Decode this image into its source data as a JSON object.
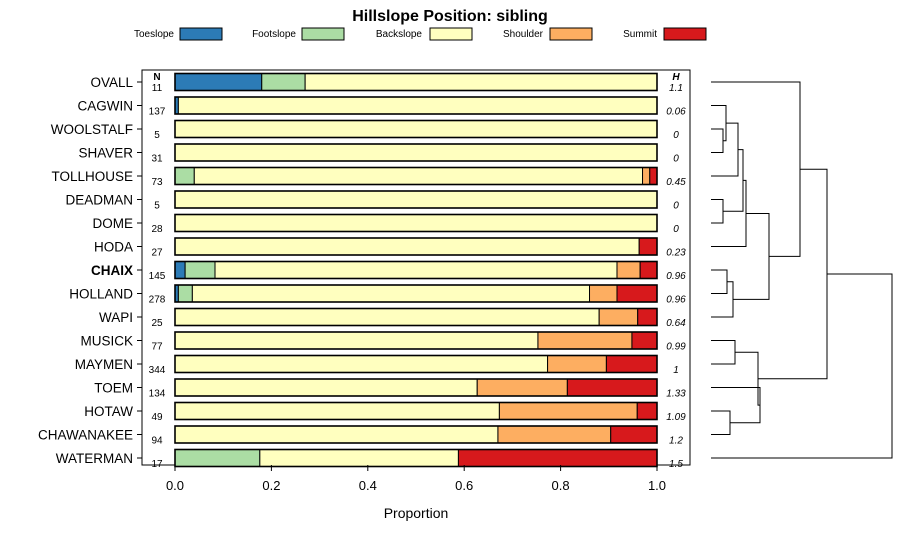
{
  "chart_data": {
    "type": "bar",
    "orientation": "horizontal",
    "stacked": true,
    "title": "Hillslope Position: sibling",
    "xlabel": "Proportion",
    "xlim": [
      0,
      1
    ],
    "x_ticks": [
      "0.0",
      "0.2",
      "0.4",
      "0.6",
      "0.8",
      "1.0"
    ],
    "x_tick_values": [
      0,
      0.2,
      0.4,
      0.6,
      0.8,
      1.0
    ],
    "legend_placement": "top",
    "n_header": "N",
    "h_header": "H",
    "series": [
      {
        "name": "Toeslope",
        "color": "#2C7BB6"
      },
      {
        "name": "Footslope",
        "color": "#ABDDA4"
      },
      {
        "name": "Backslope",
        "color": "#FFFFBF"
      },
      {
        "name": "Shoulder",
        "color": "#FDAE61"
      },
      {
        "name": "Summit",
        "color": "#D7191C"
      }
    ],
    "rows": [
      {
        "label": "OVALL",
        "n": "11",
        "h": "1.1",
        "bold": false,
        "values": [
          0.18,
          0.09,
          0.73,
          0,
          0
        ]
      },
      {
        "label": "CAGWIN",
        "n": "137",
        "h": "0.06",
        "bold": false,
        "values": [
          0.007,
          0,
          0.993,
          0,
          0
        ]
      },
      {
        "label": "WOOLSTALF",
        "n": "5",
        "h": "0",
        "bold": false,
        "values": [
          0,
          0,
          1,
          0,
          0
        ]
      },
      {
        "label": "SHAVER",
        "n": "31",
        "h": "0",
        "bold": false,
        "values": [
          0,
          0,
          1,
          0,
          0
        ]
      },
      {
        "label": "TOLLHOUSE",
        "n": "73",
        "h": "0.45",
        "bold": false,
        "values": [
          0,
          0.04,
          0.93,
          0.015,
          0.015
        ]
      },
      {
        "label": "DEADMAN",
        "n": "5",
        "h": "0",
        "bold": false,
        "values": [
          0,
          0,
          1,
          0,
          0
        ]
      },
      {
        "label": "DOME",
        "n": "28",
        "h": "0",
        "bold": false,
        "values": [
          0,
          0,
          1,
          0,
          0
        ]
      },
      {
        "label": "HODA",
        "n": "27",
        "h": "0.23",
        "bold": false,
        "values": [
          0,
          0,
          0.963,
          0,
          0.037
        ]
      },
      {
        "label": "CHAIX",
        "n": "145",
        "h": "0.96",
        "bold": true,
        "values": [
          0.021,
          0.062,
          0.834,
          0.048,
          0.035
        ]
      },
      {
        "label": "HOLLAND",
        "n": "278",
        "h": "0.96",
        "bold": false,
        "values": [
          0.007,
          0.029,
          0.824,
          0.057,
          0.083
        ]
      },
      {
        "label": "WAPI",
        "n": "25",
        "h": "0.64",
        "bold": false,
        "values": [
          0,
          0,
          0.88,
          0.08,
          0.04
        ]
      },
      {
        "label": "MUSICK",
        "n": "77",
        "h": "0.99",
        "bold": false,
        "values": [
          0,
          0,
          0.753,
          0.195,
          0.052
        ]
      },
      {
        "label": "MAYMEN",
        "n": "344",
        "h": "1",
        "bold": false,
        "values": [
          0,
          0,
          0.773,
          0.122,
          0.105
        ]
      },
      {
        "label": "TOEM",
        "n": "134",
        "h": "1.33",
        "bold": false,
        "values": [
          0,
          0,
          0.627,
          0.187,
          0.186
        ]
      },
      {
        "label": "HOTAW",
        "n": "49",
        "h": "1.09",
        "bold": false,
        "values": [
          0,
          0,
          0.673,
          0.286,
          0.041
        ]
      },
      {
        "label": "CHAWANAKEE",
        "n": "94",
        "h": "1.2",
        "bold": false,
        "values": [
          0,
          0,
          0.67,
          0.234,
          0.096
        ]
      },
      {
        "label": "WATERMAN",
        "n": "17",
        "h": "1.5",
        "bold": false,
        "values": [
          0,
          0.176,
          0.412,
          0,
          0.412
        ]
      }
    ]
  }
}
